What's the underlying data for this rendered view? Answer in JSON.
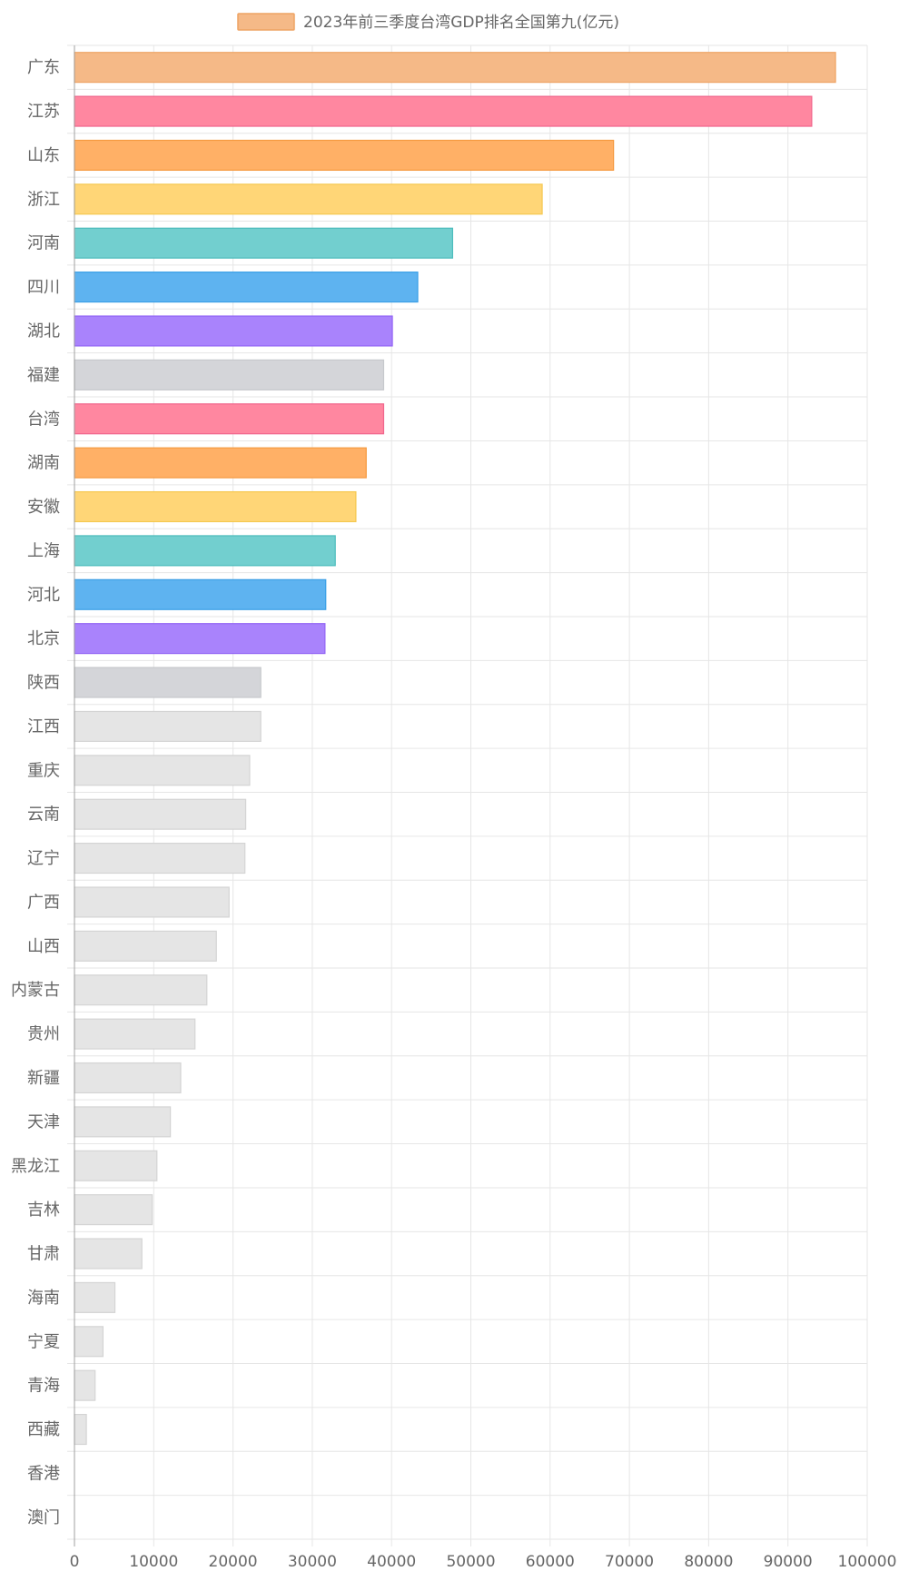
{
  "chart_data": {
    "type": "bar",
    "orientation": "horizontal",
    "title": "",
    "xlabel": "",
    "ylabel": "",
    "xlim": [
      0,
      100000
    ],
    "x_ticks": [
      0,
      10000,
      20000,
      30000,
      40000,
      50000,
      60000,
      70000,
      80000,
      90000,
      100000
    ],
    "grid": true,
    "legend": {
      "position": "top-center",
      "label": "2023年前三季度台湾GDP排名全国第九(亿元)",
      "swatch_color": "#f5b987"
    },
    "categories": [
      "广东",
      "江苏",
      "山东",
      "浙江",
      "河南",
      "四川",
      "湖北",
      "福建",
      "台湾",
      "湖南",
      "安徽",
      "上海",
      "河北",
      "北京",
      "陕西",
      "江西",
      "重庆",
      "云南",
      "辽宁",
      "广西",
      "山西",
      "内蒙古",
      "贵州",
      "新疆",
      "天津",
      "黑龙江",
      "吉林",
      "甘肃",
      "海南",
      "宁夏",
      "青海",
      "西藏",
      "香港",
      "澳门"
    ],
    "series": [
      {
        "name": "2023年前三季度台湾GDP排名全国第九(亿元)",
        "values": [
          96000,
          93000,
          68000,
          59000,
          47700,
          43300,
          40100,
          39000,
          39000,
          36800,
          35500,
          32900,
          31700,
          31600,
          23500,
          23500,
          22100,
          21600,
          21500,
          19500,
          17900,
          16700,
          15200,
          13400,
          12100,
          10400,
          9800,
          8500,
          5100,
          3600,
          2600,
          1500,
          0,
          0
        ],
        "colors": [
          "#f5b987",
          "#ff87a0",
          "#ffb066",
          "#ffd677",
          "#72cfcf",
          "#5eb3f0",
          "#a983fc",
          "#d4d5d9",
          "#ff87a0",
          "#ffb066",
          "#ffd677",
          "#72cfcf",
          "#5eb3f0",
          "#a983fc",
          "#d4d5d9",
          "#e5e5e5",
          "#e5e5e5",
          "#e5e5e5",
          "#e5e5e5",
          "#e5e5e5",
          "#e5e5e5",
          "#e5e5e5",
          "#e5e5e5",
          "#e5e5e5",
          "#e5e5e5",
          "#e5e5e5",
          "#e5e5e5",
          "#e5e5e5",
          "#e5e5e5",
          "#e5e5e5",
          "#e5e5e5",
          "#e5e5e5",
          "#e5e5e5",
          "#e5e5e5"
        ],
        "border_colors": [
          "#eea464",
          "#f0658c",
          "#f59a40",
          "#f5c850",
          "#4cbcbc",
          "#3a9fe6",
          "#9264f5",
          "#c6c8cc",
          "#f0658c",
          "#f59a40",
          "#f5c850",
          "#4cbcbc",
          "#3a9fe6",
          "#9264f5",
          "#c6c8cc",
          "#d4d4d4",
          "#d4d4d4",
          "#d4d4d4",
          "#d4d4d4",
          "#d4d4d4",
          "#d4d4d4",
          "#d4d4d4",
          "#d4d4d4",
          "#d4d4d4",
          "#d4d4d4",
          "#d4d4d4",
          "#d4d4d4",
          "#d4d4d4",
          "#d4d4d4",
          "#d4d4d4",
          "#d4d4d4",
          "#d4d4d4",
          "#d4d4d4",
          "#d4d4d4"
        ]
      }
    ]
  },
  "colors": {
    "grid": "#e6e6e6",
    "axis": "#a0a0a0",
    "text": "#666666"
  }
}
